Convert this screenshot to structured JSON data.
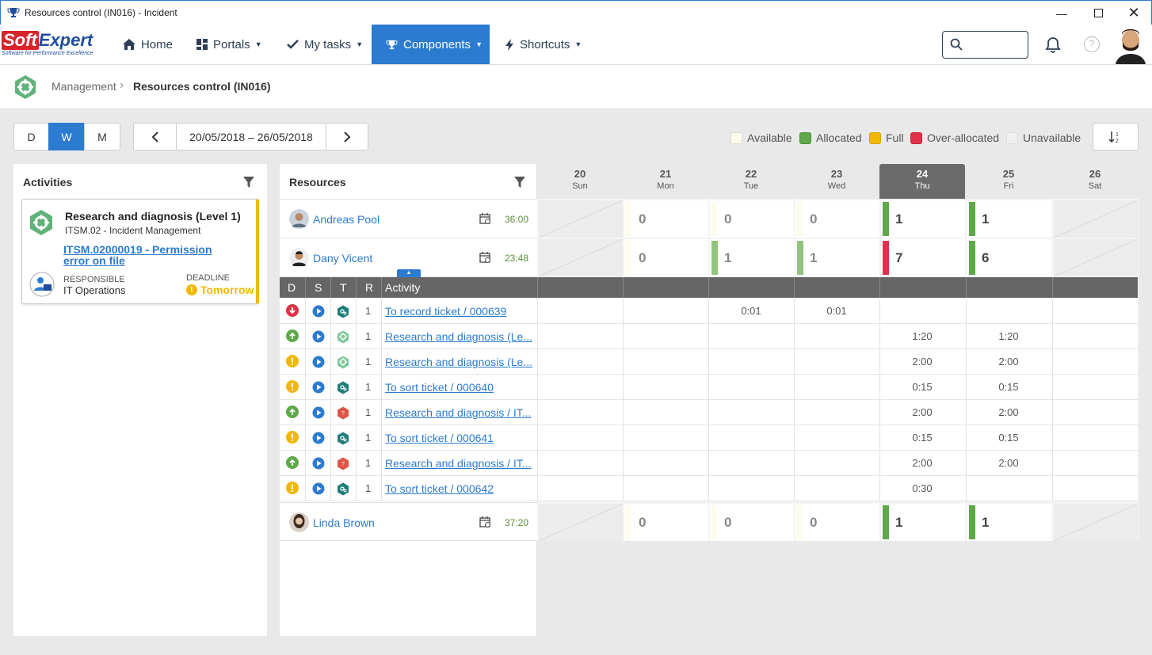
{
  "window": {
    "title": "Resources control (IN016) - Incident"
  },
  "nav": {
    "home": "Home",
    "portals": "Portals",
    "my_tasks": "My tasks",
    "components": "Components",
    "shortcuts": "Shortcuts"
  },
  "logo": {
    "soft": "Soft",
    "expert": "Expert",
    "tagline": "Software for Performance Excellence"
  },
  "breadcrumb": {
    "parent": "Management",
    "current": "Resources control (IN016)"
  },
  "view_toggle": {
    "day": "D",
    "week": "W",
    "month": "M",
    "selected": "W"
  },
  "date_range": "20/05/2018 – 26/05/2018",
  "legend": [
    {
      "label": "Available",
      "color": "#fdfbe9"
    },
    {
      "label": "Allocated",
      "color": "#5ea84a"
    },
    {
      "label": "Full",
      "color": "#f2b705"
    },
    {
      "label": "Over-allocated",
      "color": "#e0304a"
    },
    {
      "label": "Unavailable",
      "color": "#f0f0f0"
    }
  ],
  "activities_panel": {
    "title": "Activities",
    "card": {
      "title": "Research and diagnosis (Level 1)",
      "subtitle": "ITSM.02 - Incident Management",
      "link": "ITSM.02000019 - Permission error on file",
      "responsible_label": "RESPONSIBLE",
      "responsible": "IT Operations",
      "deadline_label": "DEADLINE",
      "deadline": "Tomorrow"
    }
  },
  "resources_panel": {
    "title": "Resources"
  },
  "days": [
    {
      "num": "20",
      "name": "Sun"
    },
    {
      "num": "21",
      "name": "Mon"
    },
    {
      "num": "22",
      "name": "Tue"
    },
    {
      "num": "23",
      "name": "Wed"
    },
    {
      "num": "24",
      "name": "Thu",
      "today": true
    },
    {
      "num": "25",
      "name": "Fri"
    },
    {
      "num": "26",
      "name": "Sat"
    }
  ],
  "resources": [
    {
      "name": "Andreas Pool",
      "hours": "36:00",
      "cells": [
        "",
        "0",
        "0",
        "0",
        "1",
        "1",
        ""
      ],
      "status": [
        "unavailable",
        "available",
        "available",
        "available",
        "allocated",
        "allocated",
        "unavailable"
      ]
    },
    {
      "name": "Dany Vicent",
      "hours": "23:48",
      "cells": [
        "",
        "0",
        "1",
        "1",
        "7",
        "6",
        ""
      ],
      "status": [
        "unavailable",
        "available",
        "partial",
        "partial",
        "over-allocated",
        "allocated",
        "unavailable"
      ]
    },
    {
      "name": "Linda Brown",
      "hours": "37:20",
      "cells": [
        "",
        "0",
        "0",
        "0",
        "1",
        "1",
        ""
      ],
      "status": [
        "unavailable",
        "available",
        "available",
        "available",
        "allocated",
        "allocated",
        "unavailable"
      ]
    }
  ],
  "activity_table": {
    "headers": {
      "d": "D",
      "s": "S",
      "t": "T",
      "r": "R",
      "activity": "Activity"
    },
    "rows": [
      {
        "d": "down-red",
        "t": "teal",
        "r": "1",
        "name": "To record ticket / 000639",
        "times": [
          "",
          "",
          "0:01",
          "0:01",
          "",
          "",
          ""
        ]
      },
      {
        "d": "up-green",
        "t": "green",
        "r": "1",
        "name": "Research and diagnosis (Le...",
        "times": [
          "",
          "",
          "",
          "",
          "1:20",
          "1:20",
          ""
        ]
      },
      {
        "d": "warn-yellow",
        "t": "green",
        "r": "1",
        "name": "Research and diagnosis (Le...",
        "times": [
          "",
          "",
          "",
          "",
          "2:00",
          "2:00",
          ""
        ]
      },
      {
        "d": "warn-yellow",
        "t": "teal",
        "r": "1",
        "name": "To sort ticket / 000640",
        "times": [
          "",
          "",
          "",
          "",
          "0:15",
          "0:15",
          ""
        ]
      },
      {
        "d": "up-green",
        "t": "red",
        "r": "1",
        "name": "Research and diagnosis / IT...",
        "times": [
          "",
          "",
          "",
          "",
          "2:00",
          "2:00",
          ""
        ]
      },
      {
        "d": "warn-yellow",
        "t": "teal",
        "r": "1",
        "name": "To sort ticket / 000641",
        "times": [
          "",
          "",
          "",
          "",
          "0:15",
          "0:15",
          ""
        ]
      },
      {
        "d": "up-green",
        "t": "red",
        "r": "1",
        "name": "Research and diagnosis / IT...",
        "times": [
          "",
          "",
          "",
          "",
          "2:00",
          "2:00",
          ""
        ]
      },
      {
        "d": "warn-yellow",
        "t": "teal",
        "r": "1",
        "name": "To sort ticket / 000642",
        "times": [
          "",
          "",
          "",
          "",
          "0:30",
          "",
          ""
        ]
      }
    ]
  }
}
